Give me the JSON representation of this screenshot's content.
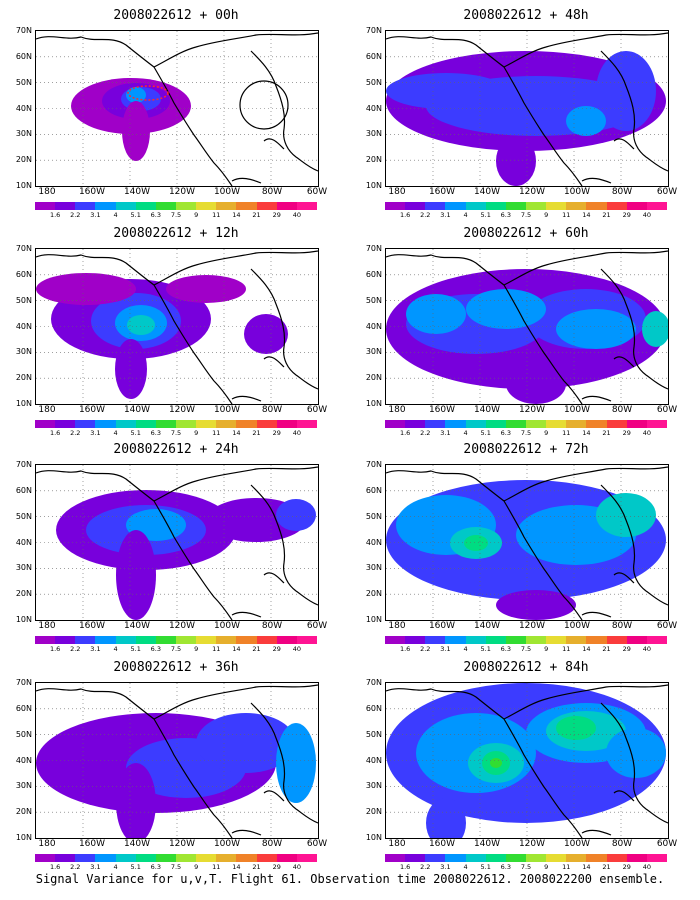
{
  "panels": [
    {
      "title": "2008022612 + 00h"
    },
    {
      "title": "2008022612 + 48h"
    },
    {
      "title": "2008022612 + 12h"
    },
    {
      "title": "2008022612 + 60h"
    },
    {
      "title": "2008022612 + 24h"
    },
    {
      "title": "2008022612 + 72h"
    },
    {
      "title": "2008022612 + 36h"
    },
    {
      "title": "2008022612 + 84h"
    }
  ],
  "lat_labels": [
    "70N",
    "60N",
    "50N",
    "40N",
    "30N",
    "20N",
    "10N"
  ],
  "lon_labels": [
    "180",
    "160W",
    "140W",
    "120W",
    "100W",
    "80W",
    "60W"
  ],
  "colorbar": {
    "labels": [
      "1.6",
      "2.2",
      "3.1",
      "4",
      "5.1",
      "6.3",
      "7.5",
      "9",
      "11",
      "14",
      "21",
      "29",
      "40"
    ],
    "colors": [
      "#a000c8",
      "#7800dc",
      "#3c3cff",
      "#0096ff",
      "#00c8c8",
      "#00dc82",
      "#32dc32",
      "#a0e632",
      "#e6dc32",
      "#e6af2d",
      "#f08228",
      "#fa3c3c",
      "#f00082",
      "#ff1493"
    ]
  },
  "footer": "Signal Variance for u,v,T. Flight 61. Observation time 2008022612. 2008022200 ensemble."
}
